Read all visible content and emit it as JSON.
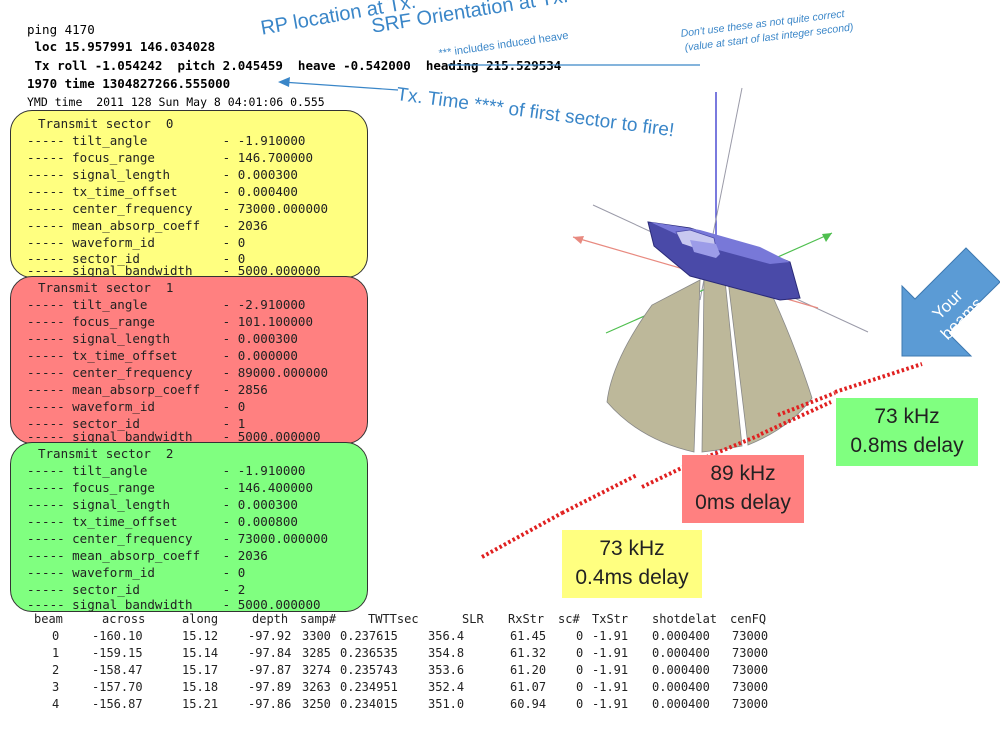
{
  "header": {
    "ping": "ping 4170",
    "loc": " loc 15.957991 146.034028",
    "tx": " Tx roll -1.054242  pitch 2.045459  heave -0.542000  heading 215.529534",
    "time1970": "1970 time 1304827266.555000",
    "ymd": "YMD time  2011 128 Sun May 8 04:01:06 0.555"
  },
  "annotations": {
    "rp_location": "RP location at Tx.",
    "srf_orientation": "SRF Orientation at Tx.",
    "induced_heave": "*** includes induced heave",
    "dont_use_1": "Don't use these as  not quite correct",
    "dont_use_2": "(value at start of last integer second)",
    "tx_time": "Tx. Time **** of first sector to fire!",
    "your_beams": "Your beams"
  },
  "sectors": [
    {
      "title": "Transmit sector  0",
      "color": "#ffff80",
      "rows": [
        "----- tilt_angle          - -1.910000",
        "----- focus_range         - 146.700000",
        "----- signal_length       - 0.000300",
        "----- tx_time_offset      - 0.000400",
        "----- center_frequency    - 73000.000000",
        "----- mean_absorp_coeff   - 2036",
        "----- waveform_id         - 0",
        "----- sector_id           - 0",
        "----- signal_bandwidth    - 5000.000000"
      ]
    },
    {
      "title": "Transmit sector  1",
      "color": "#ff8080",
      "rows": [
        "----- tilt_angle          - -2.910000",
        "----- focus_range         - 101.100000",
        "----- signal_length       - 0.000300",
        "----- tx_time_offset      - 0.000000",
        "----- center_frequency    - 89000.000000",
        "----- mean_absorp_coeff   - 2856",
        "----- waveform_id         - 0",
        "----- sector_id           - 1",
        "----- signal_bandwidth    - 5000.000000"
      ]
    },
    {
      "title": "Transmit sector  2",
      "color": "#80ff80",
      "rows": [
        "----- tilt_angle          - -1.910000",
        "----- focus_range         - 146.400000",
        "----- signal_length       - 0.000300",
        "----- tx_time_offset      - 0.000800",
        "----- center_frequency    - 73000.000000",
        "----- mean_absorp_coeff   - 2036",
        "----- waveform_id         - 0",
        "----- sector_id           - 2",
        "----- signal_bandwidth    - 5000.000000"
      ]
    }
  ],
  "freq_boxes": [
    {
      "line1": "73 kHz",
      "line2": "0.4ms delay",
      "color": "#ffff80"
    },
    {
      "line1": "89 kHz",
      "line2": "0ms delay",
      "color": "#ff8080"
    },
    {
      "line1": "73 kHz",
      "line2": "0.8ms delay",
      "color": "#80ff80"
    }
  ],
  "beam_table": {
    "headers": [
      "beam",
      "across",
      "along",
      "depth",
      "samp#",
      "TWTTsec",
      "SLR",
      "RxStr",
      "sc#",
      "TxStr",
      "shotdelat",
      "cenFQ"
    ],
    "rows": [
      [
        "0",
        "-160.10",
        "15.12",
        "-97.92",
        "3300",
        "0.237615",
        "356.4",
        "61.45",
        "0",
        "-1.91",
        "0.000400",
        "73000"
      ],
      [
        "1",
        "-159.15",
        "15.14",
        "-97.84",
        "3285",
        "0.236535",
        "354.8",
        "61.32",
        "0",
        "-1.91",
        "0.000400",
        "73000"
      ],
      [
        "2",
        "-158.47",
        "15.17",
        "-97.87",
        "3274",
        "0.235743",
        "353.6",
        "61.20",
        "0",
        "-1.91",
        "0.000400",
        "73000"
      ],
      [
        "3",
        "-157.70",
        "15.18",
        "-97.89",
        "3263",
        "0.234951",
        "352.4",
        "61.07",
        "0",
        "-1.91",
        "0.000400",
        "73000"
      ],
      [
        "4",
        "-156.87",
        "15.21",
        "-97.86",
        "3250",
        "0.234015",
        "351.0",
        "60.94",
        "0",
        "-1.91",
        "0.000400",
        "73000"
      ]
    ]
  },
  "colors": {
    "annotation_blue": "#3a86c8",
    "beam_arrow": "#5b9bd5",
    "dots": "#e02020",
    "swath": "#bdb89a",
    "ship": "#4a4aa8"
  }
}
